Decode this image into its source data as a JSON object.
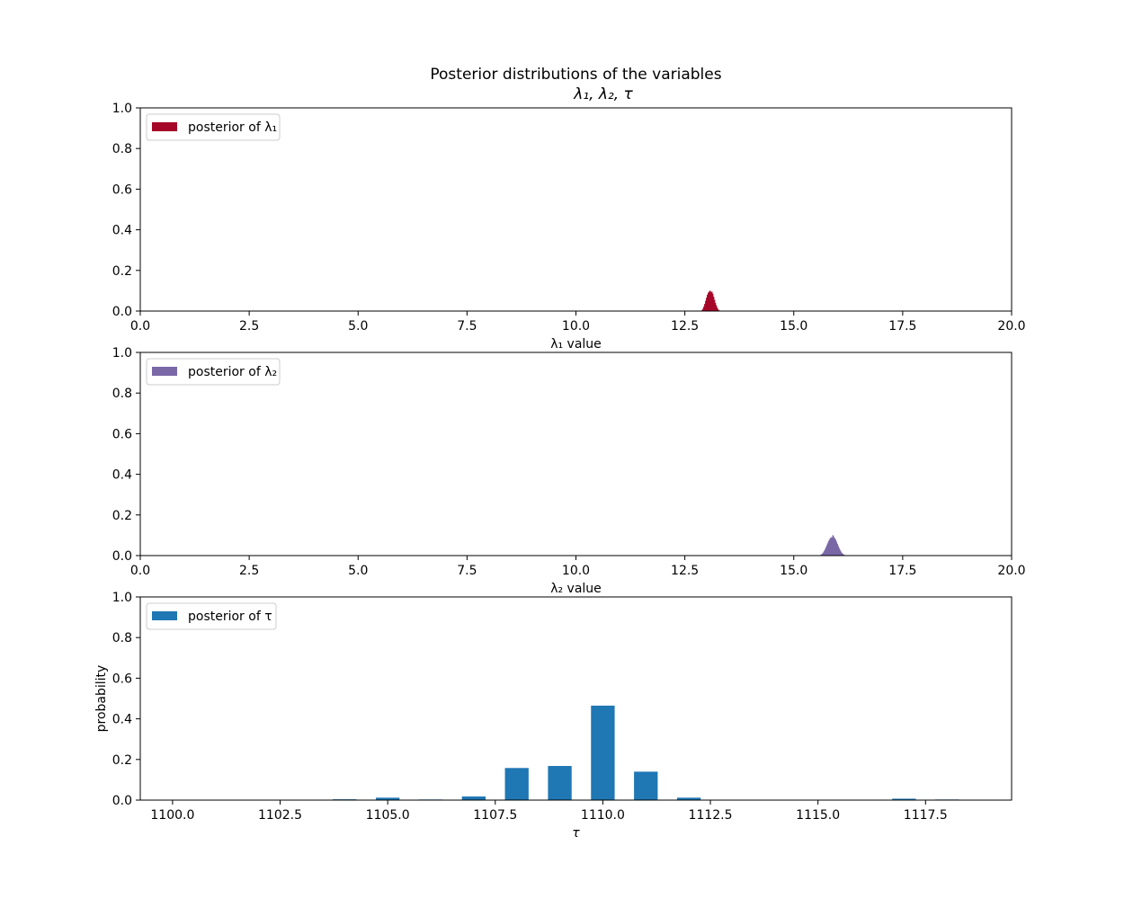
{
  "figure": {
    "title_line1": "Posterior distributions of the variables",
    "title_line2": "λ₁, λ₂, τ"
  },
  "chart_data": [
    {
      "type": "bar",
      "legend": "posterior of λ₁",
      "legend_position": "top-left",
      "color": "#A60628",
      "xlabel": "λ₁ value",
      "ylabel": "",
      "xlim": [
        0,
        20
      ],
      "ylim": [
        0,
        1
      ],
      "xticks": [
        0,
        2.5,
        5,
        7.5,
        10,
        12.5,
        15,
        17.5,
        20
      ],
      "xtick_labels": [
        "0.0",
        "2.5",
        "5.0",
        "7.5",
        "10.0",
        "12.5",
        "15.0",
        "17.5",
        "20.0"
      ],
      "yticks": [
        0,
        0.2,
        0.4,
        0.6,
        0.8,
        1.0
      ],
      "ytick_labels": [
        "0.0",
        "0.2",
        "0.4",
        "0.6",
        "0.8",
        "1.0"
      ],
      "bin_width": 0.0125,
      "bins_x": [
        12.9,
        12.92,
        12.94,
        12.96,
        12.98,
        13.0,
        13.02,
        13.04,
        13.06,
        13.08,
        13.1,
        13.12,
        13.14,
        13.16,
        13.18,
        13.2,
        13.22,
        13.24,
        13.26,
        13.28
      ],
      "values": [
        0.005,
        0.012,
        0.022,
        0.035,
        0.05,
        0.065,
        0.08,
        0.09,
        0.095,
        0.1,
        0.092,
        0.095,
        0.085,
        0.07,
        0.055,
        0.04,
        0.028,
        0.017,
        0.009,
        0.004
      ]
    },
    {
      "type": "bar",
      "legend": "posterior of λ₂",
      "legend_position": "top-left",
      "color": "#7A68A6",
      "xlabel": "λ₂ value",
      "ylabel": "",
      "xlim": [
        0,
        20
      ],
      "ylim": [
        0,
        1
      ],
      "xticks": [
        0,
        2.5,
        5,
        7.5,
        10,
        12.5,
        15,
        17.5,
        20
      ],
      "xtick_labels": [
        "0.0",
        "2.5",
        "5.0",
        "7.5",
        "10.0",
        "12.5",
        "15.0",
        "17.5",
        "20.0"
      ],
      "yticks": [
        0,
        0.2,
        0.4,
        0.6,
        0.8,
        1.0
      ],
      "ytick_labels": [
        "0.0",
        "0.2",
        "0.4",
        "0.6",
        "0.8",
        "1.0"
      ],
      "bin_width": 0.0125,
      "bins_x": [
        15.62,
        15.64,
        15.66,
        15.68,
        15.7,
        15.72,
        15.74,
        15.76,
        15.78,
        15.8,
        15.82,
        15.84,
        15.86,
        15.88,
        15.9,
        15.92,
        15.94,
        15.96,
        15.98,
        16.0,
        16.02,
        16.04,
        16.06,
        16.08,
        16.1,
        16.12,
        16.14,
        16.16,
        16.18
      ],
      "values": [
        0.003,
        0.006,
        0.01,
        0.015,
        0.022,
        0.03,
        0.04,
        0.05,
        0.06,
        0.07,
        0.078,
        0.085,
        0.09,
        0.088,
        0.1,
        0.092,
        0.085,
        0.078,
        0.068,
        0.058,
        0.047,
        0.037,
        0.028,
        0.02,
        0.014,
        0.009,
        0.006,
        0.003,
        0.002
      ]
    },
    {
      "type": "bar",
      "legend": "posterior of τ",
      "legend_position": "top-left",
      "color": "#1f77b4",
      "xlabel": "τ",
      "ylabel": "probability",
      "xlim": [
        1099.25,
        1119.5
      ],
      "ylim": [
        0,
        1
      ],
      "xticks": [
        1100,
        1102.5,
        1105,
        1107.5,
        1110,
        1112.5,
        1115,
        1117.5
      ],
      "xtick_labels": [
        "1100.0",
        "1102.5",
        "1105.0",
        "1107.5",
        "1110.0",
        "1112.5",
        "1115.0",
        "1117.5"
      ],
      "yticks": [
        0,
        0.2,
        0.4,
        0.6,
        0.8,
        1.0
      ],
      "ytick_labels": [
        "0.0",
        "0.2",
        "0.4",
        "0.6",
        "0.8",
        "1.0"
      ],
      "bin_width": 0.55,
      "bins_x": [
        1104,
        1105,
        1106,
        1107,
        1108,
        1109,
        1110,
        1111,
        1112,
        1116,
        1117,
        1118,
        1119
      ],
      "values": [
        0.004,
        0.012,
        0.003,
        0.018,
        0.158,
        0.168,
        0.465,
        0.14,
        0.012,
        0.002,
        0.007,
        0.003,
        0.002
      ]
    }
  ]
}
